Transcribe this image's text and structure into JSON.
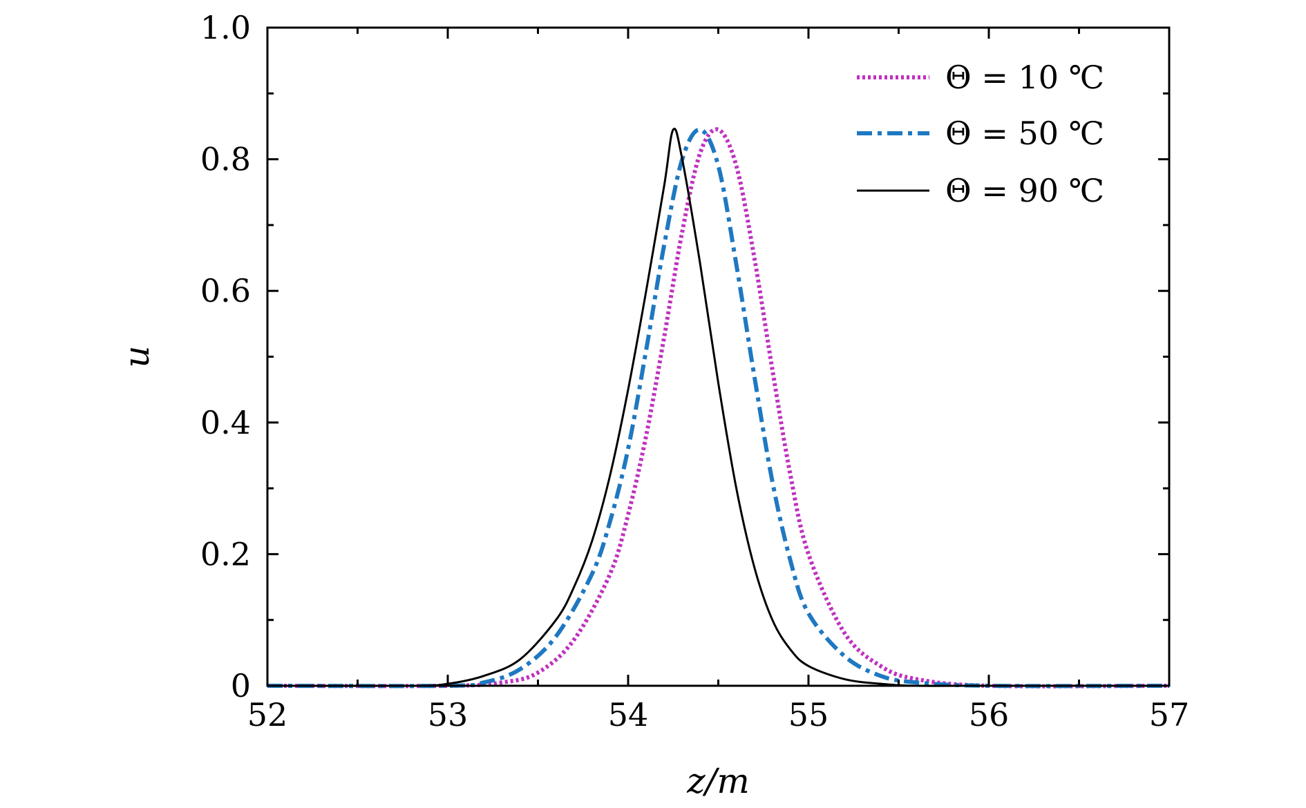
{
  "chart_data": {
    "type": "line",
    "title": "",
    "xlabel": "z/m",
    "ylabel": "u",
    "xlim": [
      52,
      57
    ],
    "ylim": [
      0,
      1.0
    ],
    "x_ticks": [
      52,
      53,
      54,
      55,
      56,
      57
    ],
    "x_tick_labels": [
      "52",
      "53",
      "54",
      "55",
      "56",
      "57"
    ],
    "y_ticks": [
      0,
      0.2,
      0.4,
      0.6,
      0.8,
      1.0
    ],
    "y_tick_labels": [
      "0",
      "0.2",
      "0.4",
      "0.6",
      "0.8",
      "1.0"
    ],
    "grid": false,
    "legend_position": "top-right",
    "series": [
      {
        "name": "Θ = 10 ℃",
        "color": "#c030c0",
        "style": "dotted",
        "x": [
          52.0,
          53.0,
          53.3,
          53.5,
          53.7,
          53.9,
          54.0,
          54.1,
          54.2,
          54.3,
          54.4,
          54.5,
          54.6,
          54.7,
          54.8,
          54.9,
          55.0,
          55.2,
          55.4,
          55.6,
          56.0,
          57.0
        ],
        "y": [
          0.0,
          0.0,
          0.005,
          0.02,
          0.07,
          0.17,
          0.26,
          0.38,
          0.53,
          0.69,
          0.81,
          0.845,
          0.79,
          0.65,
          0.48,
          0.32,
          0.2,
          0.08,
          0.03,
          0.01,
          0.0,
          0.0
        ]
      },
      {
        "name": "Θ = 50 ℃",
        "color": "#1f78c1",
        "style": "dashdot",
        "x": [
          52.0,
          53.0,
          53.2,
          53.4,
          53.6,
          53.8,
          53.9,
          54.0,
          54.1,
          54.2,
          54.3,
          54.4,
          54.5,
          54.6,
          54.7,
          54.8,
          54.9,
          55.0,
          55.2,
          55.4,
          55.6,
          56.0,
          57.0
        ],
        "y": [
          0.0,
          0.0,
          0.005,
          0.025,
          0.075,
          0.17,
          0.25,
          0.36,
          0.51,
          0.67,
          0.8,
          0.845,
          0.79,
          0.64,
          0.47,
          0.31,
          0.19,
          0.11,
          0.045,
          0.015,
          0.005,
          0.0,
          0.0
        ]
      },
      {
        "name": "Θ = 90 ℃",
        "color": "#000000",
        "style": "solid",
        "x": [
          52.0,
          52.8,
          53.0,
          53.2,
          53.4,
          53.6,
          53.7,
          53.8,
          53.9,
          54.0,
          54.1,
          54.2,
          54.25,
          54.3,
          54.4,
          54.5,
          54.6,
          54.7,
          54.8,
          54.9,
          55.0,
          55.2,
          55.4,
          55.6,
          56.0,
          57.0
        ],
        "y": [
          0.0,
          0.0,
          0.003,
          0.015,
          0.04,
          0.1,
          0.15,
          0.22,
          0.32,
          0.45,
          0.6,
          0.76,
          0.845,
          0.8,
          0.64,
          0.46,
          0.3,
          0.18,
          0.1,
          0.055,
          0.03,
          0.01,
          0.003,
          0.0,
          0.0,
          0.0
        ]
      }
    ]
  }
}
